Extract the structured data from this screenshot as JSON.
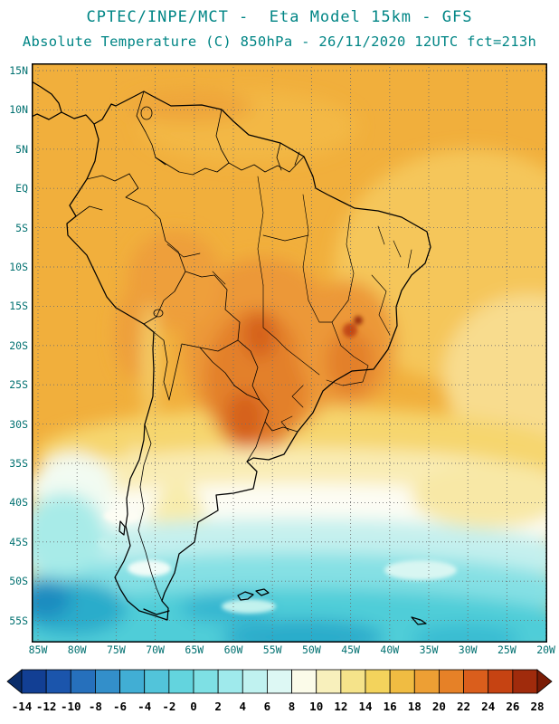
{
  "header": {
    "line1": "CPTEC/INPE/MCT -  Eta Model 15km - GFS",
    "line2": "Absolute Temperature (C) 850hPa - 26/11/2020 12UTC fct=213h",
    "title_color": "#008585"
  },
  "map": {
    "lat_labels": [
      "15N",
      "10N",
      "5N",
      "EQ",
      "5S",
      "10S",
      "15S",
      "20S",
      "25S",
      "30S",
      "35S",
      "40S",
      "45S",
      "50S",
      "55S"
    ],
    "lon_labels": [
      "85W",
      "80W",
      "75W",
      "70W",
      "65W",
      "60W",
      "55W",
      "50W",
      "45W",
      "40W",
      "35W",
      "30W",
      "25W",
      "20W"
    ]
  },
  "colorbar": {
    "tick_labels": [
      "-14",
      "-12",
      "-10",
      "-8",
      "-6",
      "-4",
      "-2",
      "0",
      "2",
      "4",
      "6",
      "8",
      "10",
      "12",
      "14",
      "16",
      "18",
      "20",
      "22",
      "24",
      "26",
      "28"
    ],
    "segment_colors": [
      "#0a2d6a",
      "#123f94",
      "#1b55ac",
      "#2670bc",
      "#338fca",
      "#41aed4",
      "#52c4da",
      "#63d4de",
      "#7ee0e4",
      "#9feaec",
      "#c0f2f0",
      "#ddf8f4",
      "#fbfbe9",
      "#f8f0bc",
      "#f5e38a",
      "#f3d35c",
      "#f0bc42",
      "#ed9f34",
      "#e68127",
      "#da5e1c",
      "#c64312",
      "#a02b0c",
      "#7a1c06"
    ]
  }
}
